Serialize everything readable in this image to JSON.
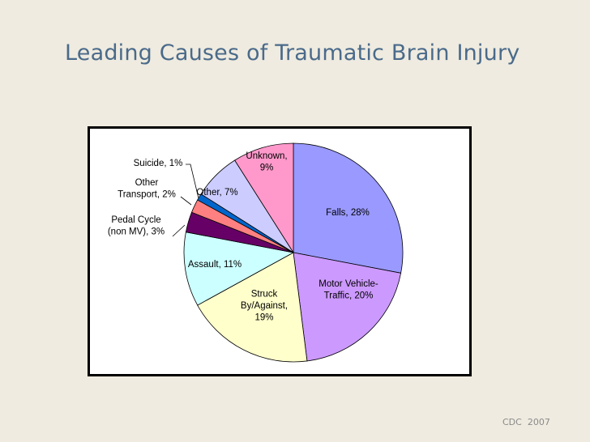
{
  "slide": {
    "title": "Leading Causes of Traumatic Brain Injury",
    "credit": "CDC  2007"
  },
  "chart_data": {
    "type": "pie",
    "start": "12 o'clock",
    "direction": "clockwise",
    "slices": [
      {
        "label": [
          "Falls, 28%"
        ],
        "value": 28,
        "color": "#9999ff"
      },
      {
        "label": [
          "Motor Vehicle-",
          "Traffic, 20%"
        ],
        "value": 20,
        "color": "#cc99ff"
      },
      {
        "label": [
          "Struck",
          "By/Against,",
          "19%"
        ],
        "value": 19,
        "color": "#ffffcc"
      },
      {
        "label": [
          "Assault, 11%"
        ],
        "value": 11,
        "color": "#ccffff"
      },
      {
        "label": [
          "Pedal Cycle",
          "(non MV), 3%"
        ],
        "value": 3,
        "color": "#660066"
      },
      {
        "label": [
          "Other",
          "Transport, 2%"
        ],
        "value": 2,
        "color": "#ff8080"
      },
      {
        "label": [
          "Suicide, 1%"
        ],
        "value": 1,
        "color": "#0066cc"
      },
      {
        "label": [
          "Other, 7%"
        ],
        "value": 7,
        "color": "#ccccff"
      },
      {
        "label": [
          "Unknown,",
          "9%"
        ],
        "value": 9,
        "color": "#ff99cc"
      }
    ]
  }
}
